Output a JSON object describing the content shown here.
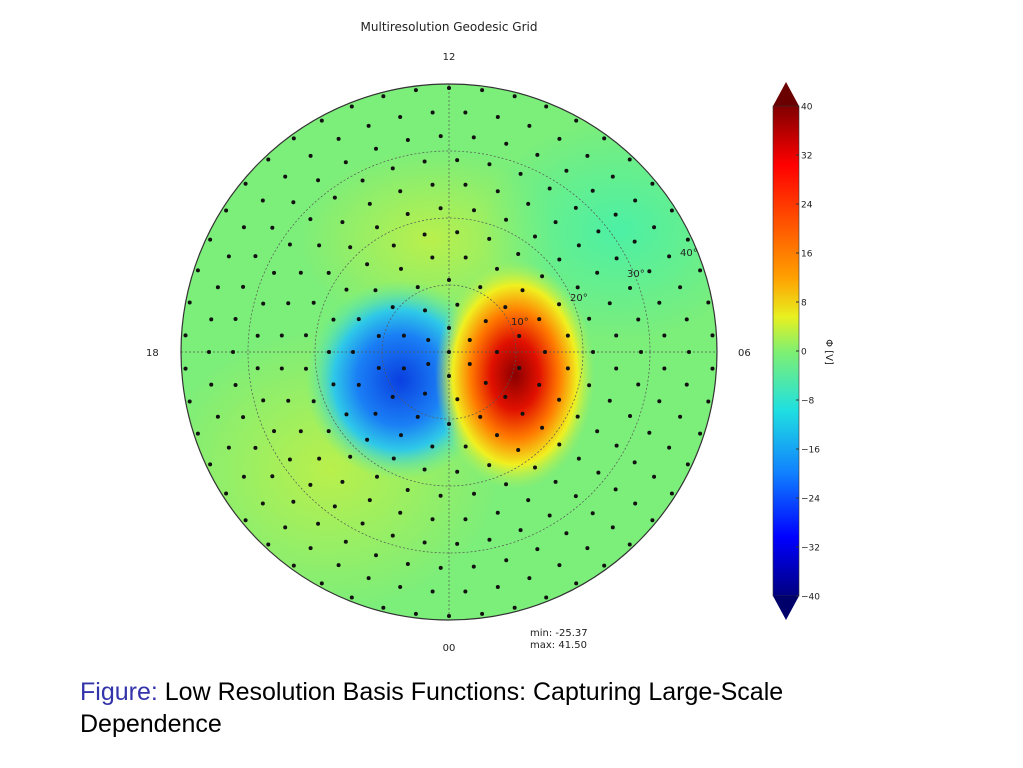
{
  "chart_data": {
    "type": "heatmap",
    "projection": "polar",
    "title": "Multiresolution Geodesic Grid",
    "mlt_labels": {
      "top": "12",
      "right": "06",
      "bottom": "00",
      "left": "18"
    },
    "latitude_ring_labels": [
      "10°",
      "20°",
      "30°",
      "40°"
    ],
    "colorbar": {
      "label": "Φ [V]",
      "ticks": [
        "40",
        "32",
        "24",
        "16",
        "8",
        "0",
        "−8",
        "−16",
        "−24",
        "−32",
        "−40"
      ],
      "range": [
        -40,
        40
      ],
      "colormap": "jet",
      "extend": "both"
    },
    "stats": {
      "min": "min: -25.37",
      "max": "max: 41.50"
    },
    "features": [
      {
        "name": "negative cell",
        "location": "dawn-midnight side of pole (18-00 sector)",
        "approx_value": -25.37
      },
      {
        "name": "positive cell",
        "location": "post-midnight/dusk-dawn 06 side",
        "approx_value": 41.5
      }
    ]
  },
  "caption": {
    "label": "Figure:",
    "text": "Low Resolution Basis Functions: Capturing Large-Scale Dependence"
  }
}
